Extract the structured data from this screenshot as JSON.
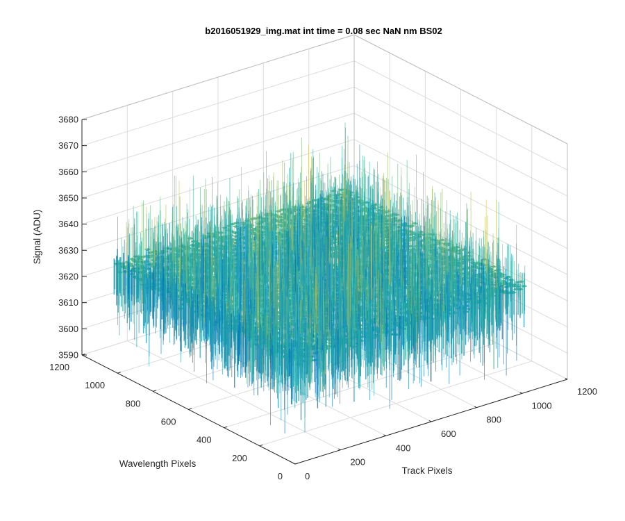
{
  "chart_data": {
    "type": "surface",
    "title": "b2016051929_img.mat int time = 0.08 sec  NaN nm BS02",
    "xlabel": "Track Pixels",
    "ylabel": "Wavelength Pixels",
    "zlabel": "Signal (ADU)",
    "xlim": [
      0,
      1200
    ],
    "ylim": [
      0,
      1200
    ],
    "zlim": [
      3590,
      3680
    ],
    "x_ticks": [
      "0",
      "200",
      "400",
      "600",
      "800",
      "1000",
      "1200"
    ],
    "y_ticks": [
      "0",
      "200",
      "400",
      "600",
      "800",
      "1000",
      "1200"
    ],
    "z_ticks": [
      "3590",
      "3600",
      "3610",
      "3620",
      "3630",
      "3640",
      "3650",
      "3660",
      "3670",
      "3680"
    ],
    "surface": {
      "x_range": [
        0,
        1024
      ],
      "y_range": [
        0,
        1024
      ],
      "mean_signal": 3629,
      "noise_std": 5,
      "min_extent": 3598,
      "max_extent": 3665
    },
    "grid": true,
    "colors": {
      "low": "#0072bd",
      "mid": "#2db5a5",
      "high": "#e4c54b",
      "axis": "#262626",
      "grid": "#dcdcdc"
    }
  }
}
